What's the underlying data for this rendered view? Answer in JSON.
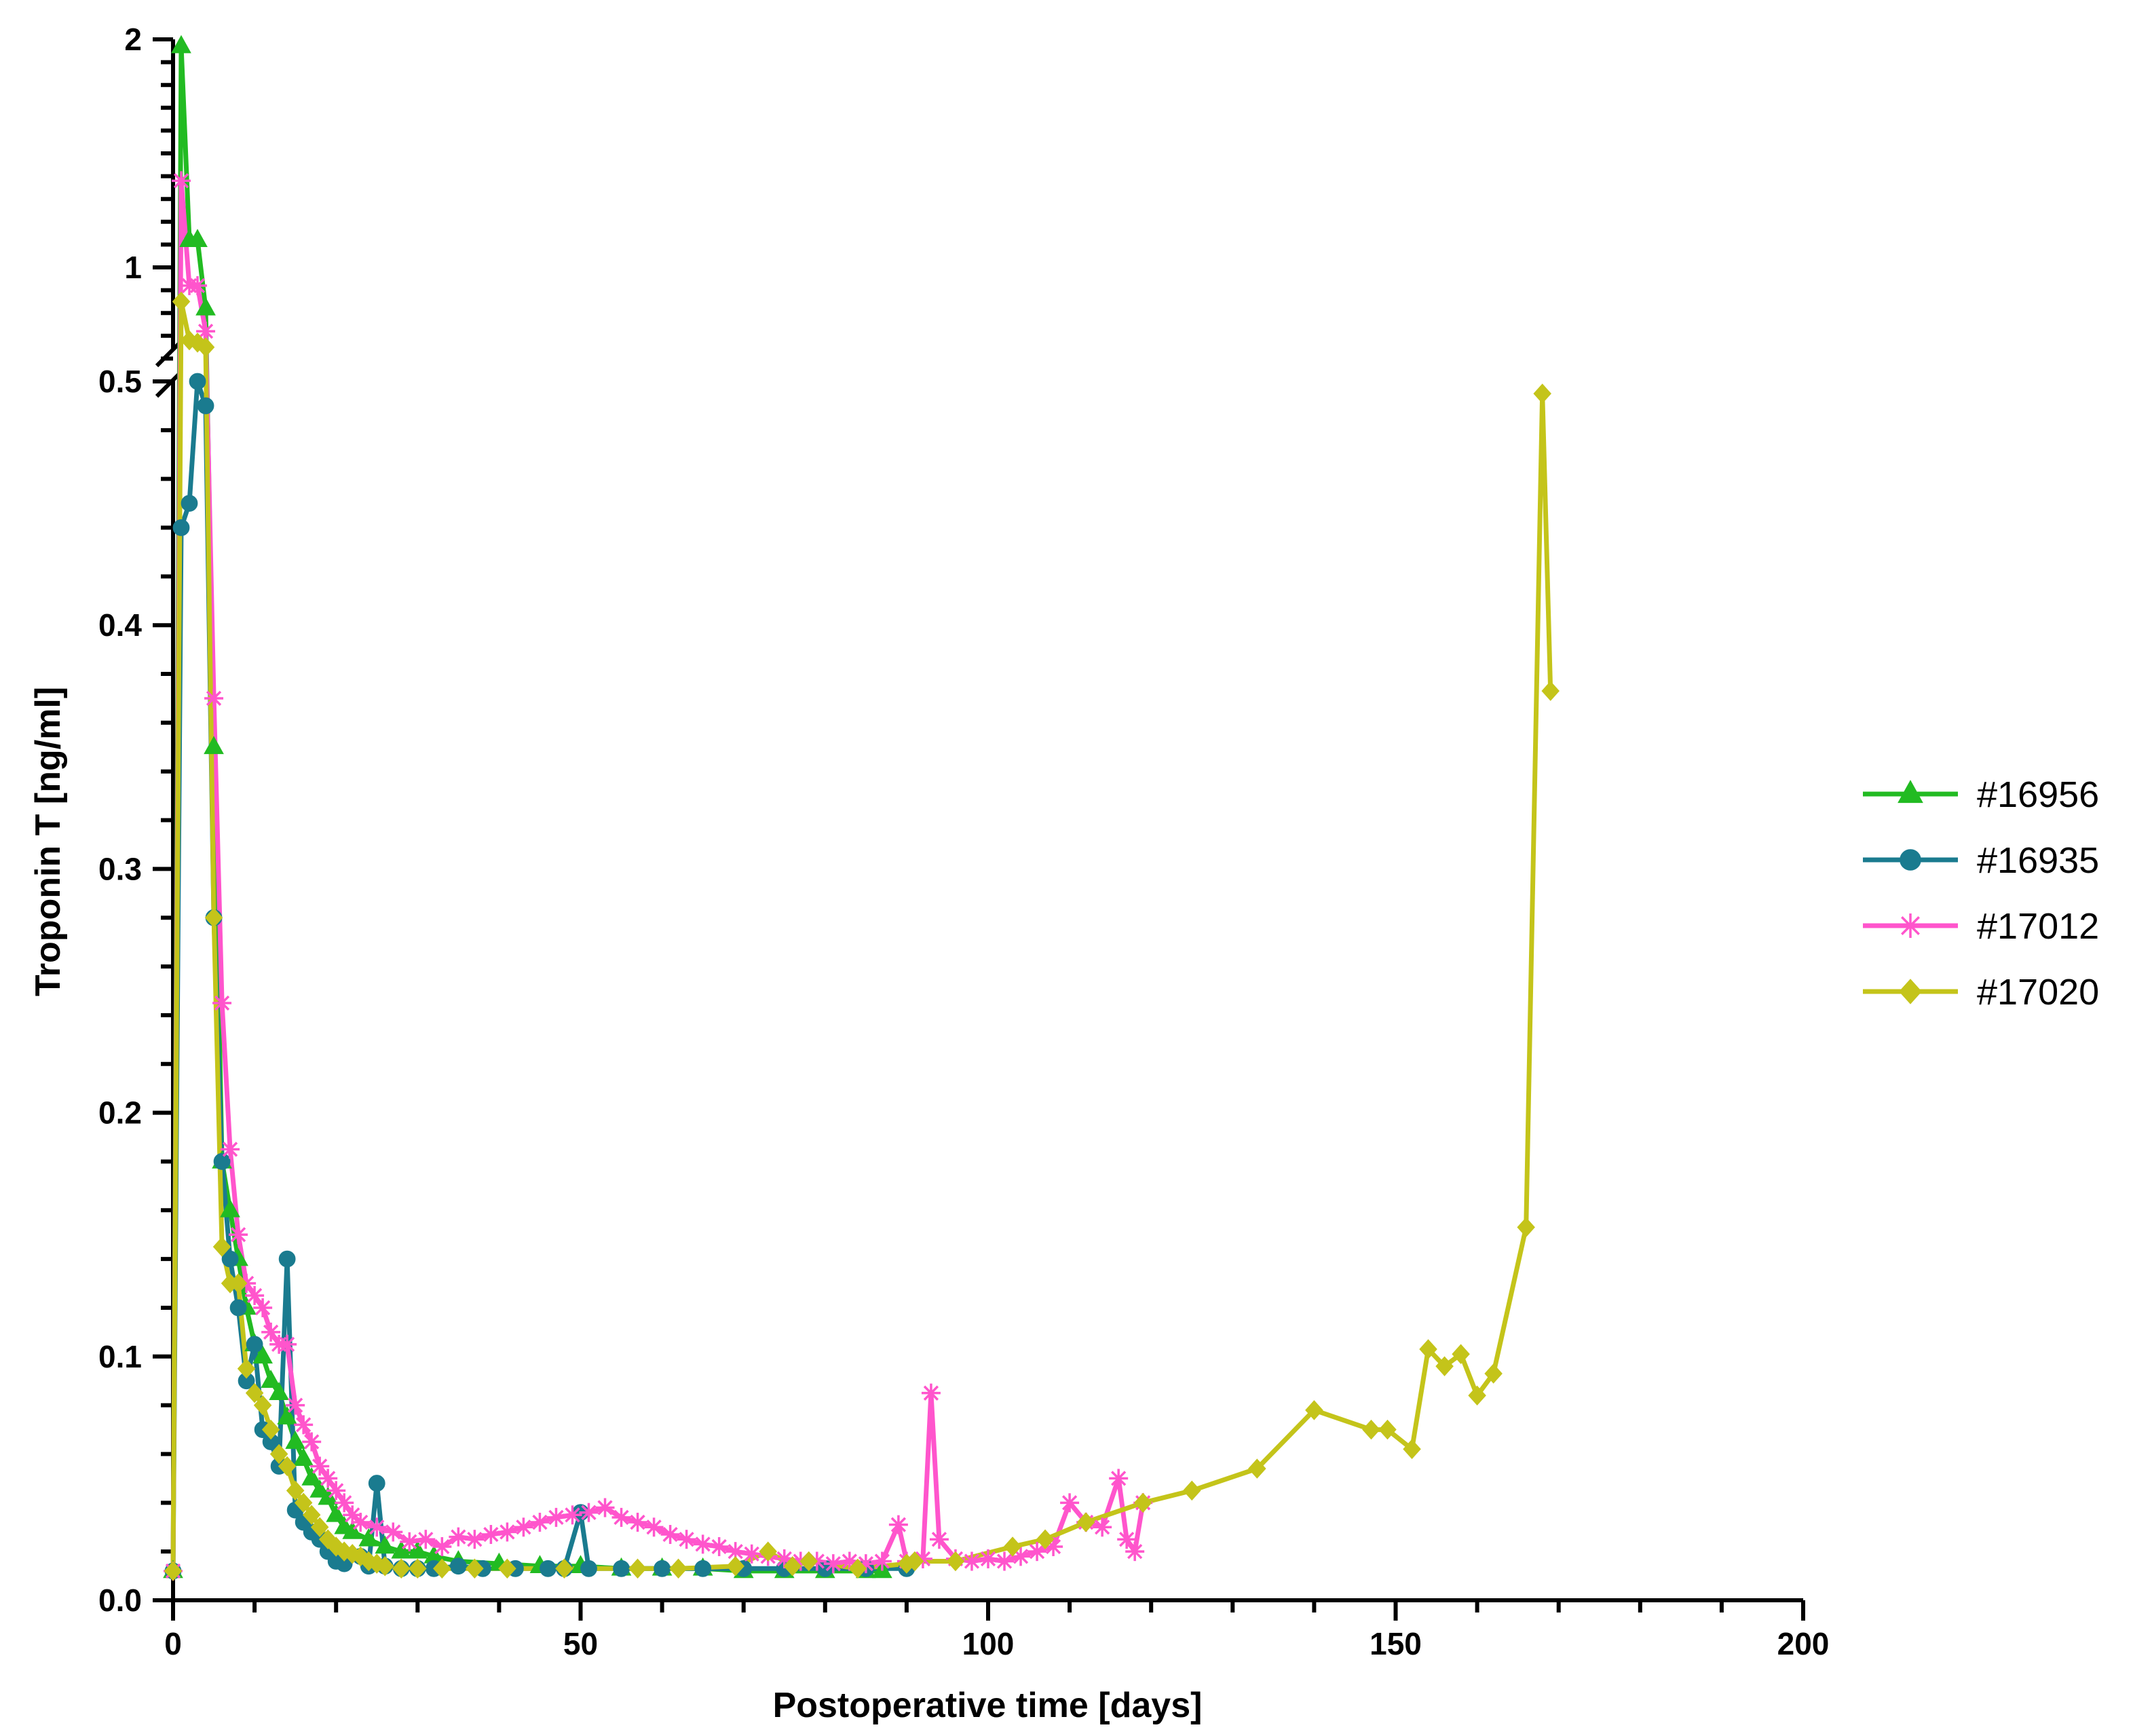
{
  "chart_data": {
    "type": "line",
    "title": "",
    "xlabel": "Postoperative time [days]",
    "ylabel": "Troponin T [ng/ml]",
    "xlim": [
      0,
      200
    ],
    "x_ticks": [
      "0",
      "50",
      "100",
      "150",
      "200"
    ],
    "y_axis_break": {
      "lower_range": [
        0,
        0.5
      ],
      "upper_range": [
        0.5,
        2
      ]
    },
    "y_ticks_lower": [
      "0.0",
      "0.1",
      "0.2",
      "0.3",
      "0.4",
      "0.5"
    ],
    "y_ticks_upper": [
      "1",
      "2"
    ],
    "grid": false,
    "legend_position": "right",
    "series": [
      {
        "name": "#16956",
        "color": "#22bb22",
        "marker": "triangle",
        "points": [
          [
            0,
            0.012
          ],
          [
            1,
            1.97
          ],
          [
            2,
            1.12
          ],
          [
            3,
            1.12
          ],
          [
            4,
            0.82
          ],
          [
            5,
            0.35
          ],
          [
            6,
            0.18
          ],
          [
            7,
            0.16
          ],
          [
            8,
            0.14
          ],
          [
            9,
            0.12
          ],
          [
            10,
            0.105
          ],
          [
            11,
            0.1
          ],
          [
            12,
            0.09
          ],
          [
            13,
            0.085
          ],
          [
            14,
            0.075
          ],
          [
            15,
            0.065
          ],
          [
            16,
            0.058
          ],
          [
            17,
            0.05
          ],
          [
            18,
            0.045
          ],
          [
            19,
            0.042
          ],
          [
            20,
            0.035
          ],
          [
            21,
            0.03
          ],
          [
            22,
            0.028
          ],
          [
            24,
            0.025
          ],
          [
            26,
            0.022
          ],
          [
            28,
            0.02
          ],
          [
            30,
            0.02
          ],
          [
            32,
            0.018
          ],
          [
            35,
            0.016
          ],
          [
            40,
            0.015
          ],
          [
            45,
            0.014
          ],
          [
            50,
            0.014
          ],
          [
            55,
            0.013
          ],
          [
            60,
            0.013
          ],
          [
            65,
            0.013
          ],
          [
            70,
            0.012
          ],
          [
            75,
            0.012
          ],
          [
            80,
            0.012
          ],
          [
            85,
            0.012
          ],
          [
            87,
            0.012
          ]
        ]
      },
      {
        "name": "#16935",
        "color": "#1a7b8f",
        "marker": "circle",
        "points": [
          [
            0,
            0.012
          ],
          [
            1,
            0.44
          ],
          [
            2,
            0.45
          ],
          [
            3,
            0.5
          ],
          [
            4,
            0.49
          ],
          [
            5,
            0.28
          ],
          [
            6,
            0.18
          ],
          [
            7,
            0.14
          ],
          [
            8,
            0.12
          ],
          [
            9,
            0.09
          ],
          [
            10,
            0.105
          ],
          [
            11,
            0.07
          ],
          [
            12,
            0.065
          ],
          [
            13,
            0.055
          ],
          [
            14,
            0.14
          ],
          [
            15,
            0.037
          ],
          [
            16,
            0.032
          ],
          [
            17,
            0.028
          ],
          [
            18,
            0.025
          ],
          [
            19,
            0.02
          ],
          [
            20,
            0.016
          ],
          [
            21,
            0.015
          ],
          [
            23,
            0.018
          ],
          [
            24,
            0.014
          ],
          [
            25,
            0.048
          ],
          [
            26,
            0.014
          ],
          [
            28,
            0.013
          ],
          [
            30,
            0.013
          ],
          [
            32,
            0.013
          ],
          [
            35,
            0.014
          ],
          [
            38,
            0.013
          ],
          [
            42,
            0.013
          ],
          [
            46,
            0.013
          ],
          [
            48,
            0.013
          ],
          [
            50,
            0.036
          ],
          [
            51,
            0.013
          ],
          [
            55,
            0.013
          ],
          [
            60,
            0.013
          ],
          [
            65,
            0.013
          ],
          [
            70,
            0.013
          ],
          [
            75,
            0.013
          ],
          [
            80,
            0.013
          ],
          [
            85,
            0.013
          ],
          [
            90,
            0.013
          ]
        ]
      },
      {
        "name": "#17012",
        "color": "#ff55cc",
        "marker": "star",
        "points": [
          [
            0,
            0.012
          ],
          [
            1,
            1.38
          ],
          [
            2,
            0.92
          ],
          [
            3,
            0.92
          ],
          [
            4,
            0.72
          ],
          [
            5,
            0.37
          ],
          [
            6,
            0.245
          ],
          [
            7,
            0.185
          ],
          [
            8,
            0.15
          ],
          [
            9,
            0.13
          ],
          [
            10,
            0.125
          ],
          [
            11,
            0.12
          ],
          [
            12,
            0.11
          ],
          [
            13,
            0.105
          ],
          [
            14,
            0.105
          ],
          [
            15,
            0.08
          ],
          [
            16,
            0.072
          ],
          [
            17,
            0.065
          ],
          [
            18,
            0.055
          ],
          [
            19,
            0.05
          ],
          [
            20,
            0.045
          ],
          [
            21,
            0.04
          ],
          [
            22,
            0.035
          ],
          [
            23,
            0.032
          ],
          [
            25,
            0.03
          ],
          [
            27,
            0.028
          ],
          [
            29,
            0.024
          ],
          [
            31,
            0.025
          ],
          [
            33,
            0.022
          ],
          [
            35,
            0.026
          ],
          [
            37,
            0.025
          ],
          [
            39,
            0.027
          ],
          [
            41,
            0.028
          ],
          [
            43,
            0.03
          ],
          [
            45,
            0.032
          ],
          [
            47,
            0.034
          ],
          [
            49,
            0.035
          ],
          [
            51,
            0.036
          ],
          [
            53,
            0.038
          ],
          [
            55,
            0.034
          ],
          [
            57,
            0.032
          ],
          [
            59,
            0.03
          ],
          [
            61,
            0.027
          ],
          [
            63,
            0.025
          ],
          [
            65,
            0.023
          ],
          [
            67,
            0.022
          ],
          [
            69,
            0.02
          ],
          [
            71,
            0.019
          ],
          [
            73,
            0.018
          ],
          [
            75,
            0.017
          ],
          [
            77,
            0.016
          ],
          [
            79,
            0.016
          ],
          [
            81,
            0.015
          ],
          [
            83,
            0.016
          ],
          [
            85,
            0.015
          ],
          [
            87,
            0.016
          ],
          [
            89,
            0.031
          ],
          [
            90,
            0.016
          ],
          [
            92,
            0.017
          ],
          [
            93,
            0.085
          ],
          [
            94,
            0.025
          ],
          [
            96,
            0.017
          ],
          [
            98,
            0.016
          ],
          [
            100,
            0.017
          ],
          [
            102,
            0.016
          ],
          [
            104,
            0.018
          ],
          [
            106,
            0.02
          ],
          [
            108,
            0.022
          ],
          [
            110,
            0.04
          ],
          [
            112,
            0.032
          ],
          [
            114,
            0.03
          ],
          [
            116,
            0.05
          ],
          [
            117,
            0.025
          ],
          [
            118,
            0.02
          ],
          [
            119,
            0.04
          ]
        ]
      },
      {
        "name": "#17020",
        "color": "#c4c41a",
        "marker": "diamond",
        "points": [
          [
            0,
            0.012
          ],
          [
            1,
            0.85
          ],
          [
            2,
            0.68
          ],
          [
            3,
            0.67
          ],
          [
            4,
            0.65
          ],
          [
            5,
            0.28
          ],
          [
            6,
            0.145
          ],
          [
            7,
            0.13
          ],
          [
            8,
            0.13
          ],
          [
            9,
            0.095
          ],
          [
            10,
            0.085
          ],
          [
            11,
            0.08
          ],
          [
            12,
            0.07
          ],
          [
            13,
            0.06
          ],
          [
            14,
            0.055
          ],
          [
            15,
            0.045
          ],
          [
            16,
            0.04
          ],
          [
            17,
            0.035
          ],
          [
            18,
            0.03
          ],
          [
            19,
            0.025
          ],
          [
            20,
            0.022
          ],
          [
            21,
            0.02
          ],
          [
            22,
            0.019
          ],
          [
            23,
            0.018
          ],
          [
            24,
            0.016
          ],
          [
            25,
            0.015
          ],
          [
            26,
            0.014
          ],
          [
            28,
            0.013
          ],
          [
            30,
            0.013
          ],
          [
            33,
            0.013
          ],
          [
            37,
            0.013
          ],
          [
            41,
            0.013
          ],
          [
            48,
            0.013
          ],
          [
            57,
            0.013
          ],
          [
            62,
            0.013
          ],
          [
            69,
            0.014
          ],
          [
            73,
            0.02
          ],
          [
            76,
            0.014
          ],
          [
            78,
            0.016
          ],
          [
            84,
            0.013
          ],
          [
            90,
            0.015
          ],
          [
            91,
            0.016
          ],
          [
            96,
            0.016
          ],
          [
            103,
            0.022
          ],
          [
            107,
            0.025
          ],
          [
            112,
            0.032
          ],
          [
            119,
            0.04
          ],
          [
            125,
            0.045
          ],
          [
            133,
            0.054
          ],
          [
            140,
            0.078
          ],
          [
            147,
            0.07
          ],
          [
            149,
            0.07
          ],
          [
            152,
            0.062
          ],
          [
            154,
            0.103
          ],
          [
            156,
            0.096
          ],
          [
            158,
            0.101
          ],
          [
            160,
            0.084
          ],
          [
            162,
            0.093
          ],
          [
            166,
            0.153
          ],
          [
            168,
            0.495
          ],
          [
            169,
            0.373
          ]
        ]
      }
    ]
  }
}
